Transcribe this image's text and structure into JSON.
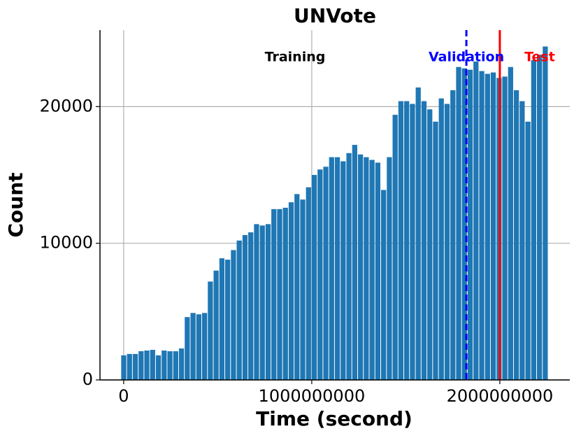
{
  "chart_data": {
    "type": "histogram",
    "title": "UNVote",
    "xlabel": "Time (second)",
    "ylabel": "Count",
    "bins": [
      -15000000,
      15700000,
      46400000,
      77100000,
      107800000,
      138500000,
      169200000,
      199900000,
      230600000,
      261300000,
      292000000,
      322700000,
      353400000,
      384100000,
      414800000,
      445500000,
      476200000,
      506900000,
      537600000,
      568300000,
      599000000,
      629700000,
      660400000,
      691100000,
      721800000,
      752500000,
      783200000,
      813900000,
      844600000,
      875300000,
      906000000,
      936700000,
      967400000,
      998100000,
      1028800000,
      1059500000,
      1090200000,
      1120900000,
      1151600000,
      1182300000,
      1213000000,
      1243700000,
      1274400000,
      1305100000,
      1335800000,
      1366500000,
      1397200000,
      1427900000,
      1458600000,
      1489300000,
      1520000000,
      1550700000,
      1581400000,
      1612100000,
      1642800000,
      1673500000,
      1704200000,
      1734900000,
      1765600000,
      1796300000,
      1827000000,
      1857700000,
      1888400000,
      1919100000,
      1949800000,
      1980500000,
      2011200000,
      2041900000,
      2072600000,
      2103300000,
      2134000000,
      2164700000,
      2195400000,
      2226100000,
      2256800000
    ],
    "values": [
      1800,
      1900,
      1900,
      2100,
      2150,
      2200,
      1800,
      2150,
      2100,
      2100,
      2300,
      4600,
      4900,
      4800,
      4900,
      7200,
      8000,
      8900,
      8800,
      9500,
      10200,
      10600,
      10800,
      11400,
      11300,
      11400,
      12500,
      12500,
      12600,
      13000,
      13600,
      13200,
      14100,
      15000,
      15400,
      15600,
      16300,
      16300,
      16000,
      16600,
      17200,
      16500,
      16300,
      16100,
      15900,
      13900,
      16300,
      19400,
      20400,
      20400,
      20200,
      21400,
      20400,
      19800,
      18900,
      20600,
      20200,
      21200,
      22900,
      22800,
      22700,
      23300,
      22600,
      22400,
      22500,
      22100,
      22200,
      22900,
      21200,
      20400,
      18900,
      23400,
      23800,
      24400
    ],
    "color": "#1f77b4",
    "xlim": [
      -126000000,
      2372000000
    ],
    "xticks": [
      0,
      1000000000,
      2000000000
    ],
    "ylim": [
      0,
      25600
    ],
    "yticks": [
      0,
      10000,
      20000
    ],
    "grid": true,
    "split_lines": [
      {
        "name": "Validation",
        "x": 1822000000,
        "color": "#0000ff",
        "style": "dashed"
      },
      {
        "name": "Test",
        "x": 2000000000,
        "color": "#ff0000",
        "style": "solid"
      }
    ],
    "region_label": {
      "text": "Training",
      "color": "#000000"
    }
  }
}
